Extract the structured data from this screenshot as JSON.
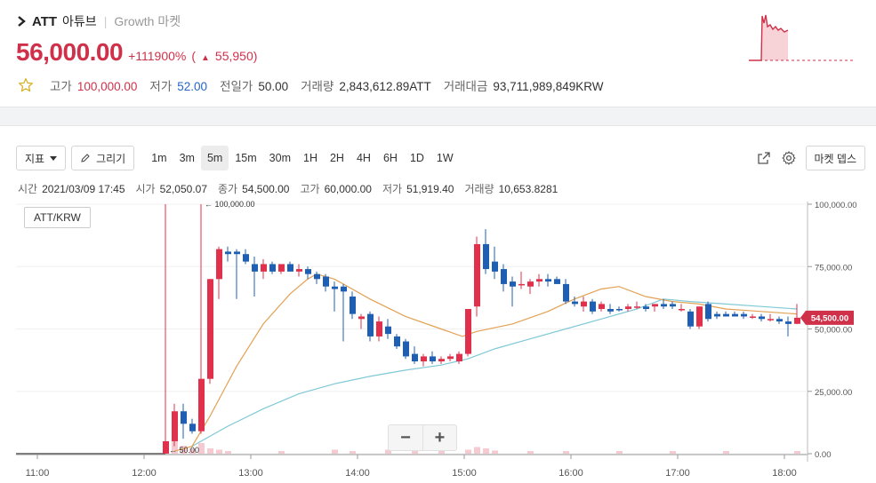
{
  "header": {
    "symbol": "ATT",
    "name": "아튜브",
    "separator": "|",
    "market": "Growth 마켓",
    "price": "56,000.00",
    "change_pct": "+111900%",
    "change_open": "(",
    "change_arrow": "▲",
    "change_value": "55,950)",
    "stats": [
      {
        "label": "고가",
        "value": "100,000.00",
        "color": "red"
      },
      {
        "label": "저가",
        "value": "52.00",
        "color": "blue"
      },
      {
        "label": "전일가",
        "value": "50.00",
        "color": "dark"
      },
      {
        "label": "거래량",
        "value": "2,843,612.89",
        "unit": "ATT"
      },
      {
        "label": "거래대금",
        "value": "93,711,989,849",
        "unit": "KRW"
      }
    ]
  },
  "toolbar": {
    "indicator_label": "지표",
    "draw_label": "그리기",
    "timeframes": [
      "1m",
      "3m",
      "5m",
      "15m",
      "30m",
      "1H",
      "2H",
      "4H",
      "6H",
      "1D",
      "1W"
    ],
    "active_timeframe": "5m",
    "depth_label": "마켓 뎁스"
  },
  "info": {
    "time_label": "시간",
    "time_value": "2021/03/09 17:45",
    "open_label": "시가",
    "open_value": "52,050.07",
    "close_label": "종가",
    "close_value": "54,500.00",
    "high_label": "고가",
    "high_value": "60,000.00",
    "low_label": "저가",
    "low_value": "51,919.40",
    "volume_label": "거래량",
    "volume_value": "10,653.8281"
  },
  "pair_label": "ATT/KRW",
  "zoom": {
    "out": "−",
    "in": "+"
  },
  "colors": {
    "up": "#e0304c",
    "down": "#1f5fb3",
    "ma_orange": "#e3a154",
    "ma_teal": "#7fc9d6",
    "accent_red": "#d0314a"
  },
  "chart_data": {
    "type": "candlestick",
    "x_ticks": [
      "11:00",
      "12:00",
      "13:00",
      "14:00",
      "15:00",
      "16:00",
      "17:00",
      "18:00"
    ],
    "y_ticks": [
      "100,000.00",
      "75,000.00",
      "50,000.00",
      "25,000.00",
      "0.00"
    ],
    "y_tick_values": [
      100000,
      75000,
      50000,
      25000,
      0
    ],
    "ylim": [
      0,
      100000
    ],
    "xlim_minutes": [
      650,
      1095
    ],
    "annotations": {
      "high_marker": "100,000.00",
      "low_marker": "50.00"
    },
    "last_price_label": "54,500.00",
    "candles": [
      {
        "t": 725,
        "o": 50,
        "h": 100000,
        "l": 50,
        "c": 5000
      },
      {
        "t": 730,
        "o": 5000,
        "h": 20000,
        "l": 3000,
        "c": 17000
      },
      {
        "t": 735,
        "o": 17000,
        "h": 20000,
        "l": 6000,
        "c": 12000
      },
      {
        "t": 740,
        "o": 12000,
        "h": 14000,
        "l": 8000,
        "c": 9000
      },
      {
        "t": 745,
        "o": 9000,
        "h": 100000,
        "l": 8000,
        "c": 30000
      },
      {
        "t": 750,
        "o": 30000,
        "h": 70000,
        "l": 28000,
        "c": 70000
      },
      {
        "t": 755,
        "o": 70000,
        "h": 83000,
        "l": 62000,
        "c": 82000
      },
      {
        "t": 760,
        "o": 81000,
        "h": 83000,
        "l": 77000,
        "c": 80000
      },
      {
        "t": 765,
        "o": 81000,
        "h": 82000,
        "l": 62000,
        "c": 80000
      },
      {
        "t": 770,
        "o": 80000,
        "h": 82000,
        "l": 76000,
        "c": 77000
      },
      {
        "t": 775,
        "o": 76000,
        "h": 79000,
        "l": 63000,
        "c": 73000
      },
      {
        "t": 780,
        "o": 73000,
        "h": 78000,
        "l": 70000,
        "c": 76000
      },
      {
        "t": 785,
        "o": 76000,
        "h": 77000,
        "l": 72000,
        "c": 73000
      },
      {
        "t": 790,
        "o": 73000,
        "h": 76000,
        "l": 72000,
        "c": 76000
      },
      {
        "t": 795,
        "o": 76000,
        "h": 77000,
        "l": 73000,
        "c": 73000
      },
      {
        "t": 800,
        "o": 73000,
        "h": 76000,
        "l": 71000,
        "c": 74000
      },
      {
        "t": 805,
        "o": 74000,
        "h": 75000,
        "l": 70000,
        "c": 72000
      },
      {
        "t": 810,
        "o": 72000,
        "h": 73000,
        "l": 68000,
        "c": 70000
      },
      {
        "t": 815,
        "o": 71000,
        "h": 72000,
        "l": 65000,
        "c": 67000
      },
      {
        "t": 820,
        "o": 67000,
        "h": 69000,
        "l": 57000,
        "c": 66000
      },
      {
        "t": 825,
        "o": 67000,
        "h": 68000,
        "l": 45000,
        "c": 65000
      },
      {
        "t": 830,
        "o": 63000,
        "h": 65000,
        "l": 54000,
        "c": 56000
      },
      {
        "t": 835,
        "o": 54000,
        "h": 56000,
        "l": 50000,
        "c": 55000
      },
      {
        "t": 840,
        "o": 56000,
        "h": 57000,
        "l": 45000,
        "c": 47000
      },
      {
        "t": 845,
        "o": 47000,
        "h": 55000,
        "l": 45000,
        "c": 53000
      },
      {
        "t": 850,
        "o": 51000,
        "h": 54000,
        "l": 46000,
        "c": 48000
      },
      {
        "t": 855,
        "o": 47000,
        "h": 48000,
        "l": 42000,
        "c": 43000
      },
      {
        "t": 860,
        "o": 45000,
        "h": 46000,
        "l": 38000,
        "c": 39000
      },
      {
        "t": 865,
        "o": 40000,
        "h": 43000,
        "l": 36000,
        "c": 37000
      },
      {
        "t": 870,
        "o": 37000,
        "h": 40000,
        "l": 35000,
        "c": 39000
      },
      {
        "t": 875,
        "o": 39000,
        "h": 41000,
        "l": 36000,
        "c": 37000
      },
      {
        "t": 880,
        "o": 37000,
        "h": 39000,
        "l": 36000,
        "c": 38000
      },
      {
        "t": 885,
        "o": 38000,
        "h": 40000,
        "l": 37000,
        "c": 39000
      },
      {
        "t": 890,
        "o": 37000,
        "h": 41000,
        "l": 36000,
        "c": 40000
      },
      {
        "t": 895,
        "o": 40000,
        "h": 58000,
        "l": 39000,
        "c": 58000
      },
      {
        "t": 900,
        "o": 59000,
        "h": 87000,
        "l": 55000,
        "c": 84000
      },
      {
        "t": 905,
        "o": 84000,
        "h": 90000,
        "l": 72000,
        "c": 74000
      },
      {
        "t": 910,
        "o": 77000,
        "h": 83000,
        "l": 70000,
        "c": 73000
      },
      {
        "t": 915,
        "o": 74000,
        "h": 76000,
        "l": 65000,
        "c": 68000
      },
      {
        "t": 920,
        "o": 69000,
        "h": 71000,
        "l": 59000,
        "c": 67000
      },
      {
        "t": 925,
        "o": 68000,
        "h": 73000,
        "l": 66000,
        "c": 68000
      },
      {
        "t": 930,
        "o": 67000,
        "h": 70000,
        "l": 64000,
        "c": 69000
      },
      {
        "t": 935,
        "o": 69000,
        "h": 72000,
        "l": 67000,
        "c": 70000
      },
      {
        "t": 940,
        "o": 70000,
        "h": 72000,
        "l": 67000,
        "c": 69000
      },
      {
        "t": 945,
        "o": 70000,
        "h": 71000,
        "l": 68000,
        "c": 68000
      },
      {
        "t": 950,
        "o": 68000,
        "h": 70000,
        "l": 60000,
        "c": 61000
      },
      {
        "t": 955,
        "o": 61000,
        "h": 63000,
        "l": 59000,
        "c": 60000
      },
      {
        "t": 960,
        "o": 59000,
        "h": 63000,
        "l": 57000,
        "c": 61000
      },
      {
        "t": 965,
        "o": 61000,
        "h": 62000,
        "l": 56000,
        "c": 57000
      },
      {
        "t": 970,
        "o": 58000,
        "h": 61000,
        "l": 57000,
        "c": 60000
      },
      {
        "t": 975,
        "o": 58000,
        "h": 60000,
        "l": 56000,
        "c": 57000
      },
      {
        "t": 980,
        "o": 58000,
        "h": 59000,
        "l": 57000,
        "c": 57500
      },
      {
        "t": 985,
        "o": 58000,
        "h": 60000,
        "l": 57000,
        "c": 59000
      },
      {
        "t": 990,
        "o": 59000,
        "h": 61000,
        "l": 58000,
        "c": 59000
      },
      {
        "t": 995,
        "o": 59000,
        "h": 60000,
        "l": 57000,
        "c": 58000
      },
      {
        "t": 1000,
        "o": 59000,
        "h": 60000,
        "l": 57000,
        "c": 60000
      },
      {
        "t": 1005,
        "o": 60000,
        "h": 62000,
        "l": 58000,
        "c": 59000
      },
      {
        "t": 1010,
        "o": 60000,
        "h": 61000,
        "l": 58000,
        "c": 59000
      },
      {
        "t": 1015,
        "o": 58000,
        "h": 60000,
        "l": 57000,
        "c": 58000
      },
      {
        "t": 1020,
        "o": 57000,
        "h": 58000,
        "l": 50000,
        "c": 51000
      },
      {
        "t": 1025,
        "o": 51000,
        "h": 59000,
        "l": 50000,
        "c": 59000
      },
      {
        "t": 1030,
        "o": 60000,
        "h": 61000,
        "l": 53000,
        "c": 54000
      },
      {
        "t": 1035,
        "o": 56000,
        "h": 57000,
        "l": 54000,
        "c": 55000
      },
      {
        "t": 1040,
        "o": 56000,
        "h": 57000,
        "l": 55000,
        "c": 55000
      },
      {
        "t": 1045,
        "o": 56000,
        "h": 57000,
        "l": 55000,
        "c": 55000
      },
      {
        "t": 1050,
        "o": 56000,
        "h": 57000,
        "l": 54000,
        "c": 55000
      },
      {
        "t": 1055,
        "o": 55000,
        "h": 56000,
        "l": 54000,
        "c": 55000
      },
      {
        "t": 1060,
        "o": 55000,
        "h": 56000,
        "l": 53000,
        "c": 54000
      },
      {
        "t": 1065,
        "o": 54000,
        "h": 56000,
        "l": 53000,
        "c": 54000
      },
      {
        "t": 1070,
        "o": 54000,
        "h": 55000,
        "l": 52000,
        "c": 53000
      },
      {
        "t": 1075,
        "o": 53000,
        "h": 55000,
        "l": 47000,
        "c": 52000
      },
      {
        "t": 1080,
        "o": 52050,
        "h": 60000,
        "l": 51919,
        "c": 54500
      }
    ],
    "ma_orange": [
      [
        730,
        1000
      ],
      [
        740,
        3000
      ],
      [
        750,
        15000
      ],
      [
        765,
        35000
      ],
      [
        780,
        52000
      ],
      [
        795,
        64000
      ],
      [
        805,
        70000
      ],
      [
        810,
        72000
      ],
      [
        820,
        70000
      ],
      [
        840,
        62000
      ],
      [
        860,
        55000
      ],
      [
        880,
        50000
      ],
      [
        892,
        47000
      ],
      [
        900,
        49000
      ],
      [
        920,
        52000
      ],
      [
        940,
        57000
      ],
      [
        955,
        62000
      ],
      [
        970,
        66000
      ],
      [
        980,
        67000
      ],
      [
        995,
        63000
      ],
      [
        1010,
        61000
      ],
      [
        1025,
        60000
      ],
      [
        1040,
        58000
      ],
      [
        1060,
        57000
      ],
      [
        1080,
        56000
      ]
    ],
    "ma_teal": [
      [
        740,
        3000
      ],
      [
        760,
        11000
      ],
      [
        780,
        18000
      ],
      [
        800,
        24000
      ],
      [
        820,
        28000
      ],
      [
        840,
        31000
      ],
      [
        860,
        33500
      ],
      [
        880,
        35500
      ],
      [
        895,
        38000
      ],
      [
        910,
        42000
      ],
      [
        930,
        46000
      ],
      [
        950,
        50000
      ],
      [
        970,
        54000
      ],
      [
        990,
        58000
      ],
      [
        1005,
        62000
      ],
      [
        1020,
        61000
      ],
      [
        1040,
        60000
      ],
      [
        1060,
        59000
      ],
      [
        1080,
        58000
      ]
    ],
    "volume": [
      [
        725,
        2
      ],
      [
        730,
        7
      ],
      [
        735,
        3
      ],
      [
        740,
        2
      ],
      [
        745,
        4
      ],
      [
        750,
        2
      ],
      [
        755,
        1.5
      ],
      [
        760,
        1
      ],
      [
        790,
        1
      ],
      [
        820,
        1.5
      ],
      [
        830,
        1
      ],
      [
        850,
        1.5
      ],
      [
        865,
        1
      ],
      [
        880,
        1
      ],
      [
        895,
        1.5
      ],
      [
        900,
        2.5
      ],
      [
        905,
        2
      ],
      [
        910,
        1.2
      ],
      [
        930,
        1
      ],
      [
        950,
        1
      ],
      [
        980,
        1
      ],
      [
        1010,
        1
      ],
      [
        1040,
        1
      ],
      [
        1080,
        1
      ]
    ]
  }
}
